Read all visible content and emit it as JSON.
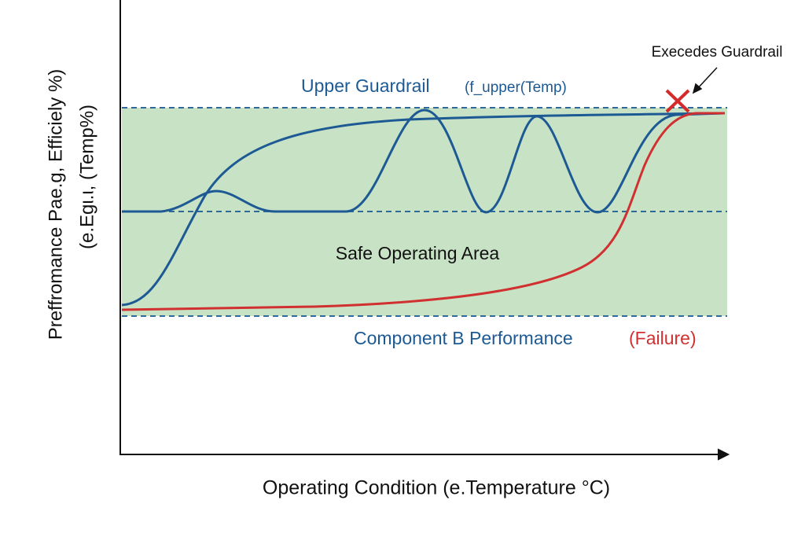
{
  "annotation": "Execedes Guardrail",
  "upper_guardrail": {
    "title": "Upper Guardrail",
    "formula": "(f_upper(Temp)"
  },
  "safe_area": "Safe Operating Area",
  "component_label": {
    "name": "Component B Performance",
    "status": "(Failure)"
  },
  "y_axis": {
    "line1": "Preffromance Pae.g, Efficiely %)",
    "line2": "(e.Egι.ι, (Temp%)"
  },
  "x_axis": "Operating Condition (e.Temperature °C)"
}
